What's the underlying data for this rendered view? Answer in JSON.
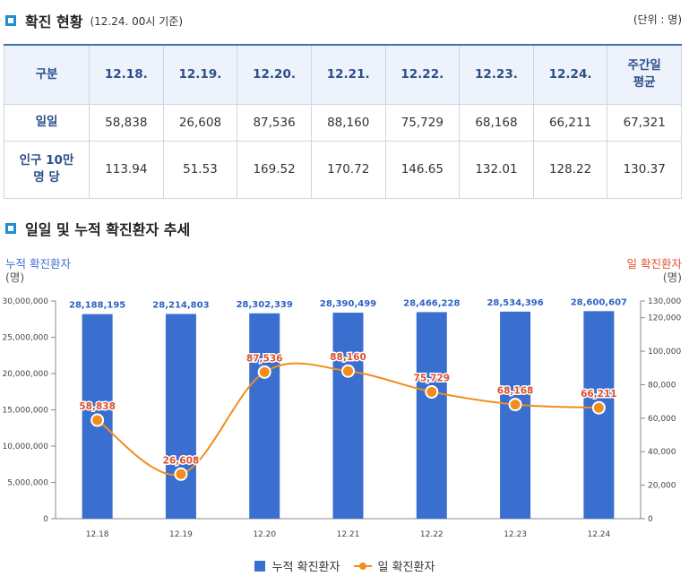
{
  "section1": {
    "title": "확진 현황",
    "subtitle": "(12.24. 00시 기준)",
    "unit": "(단위 : 명)"
  },
  "table": {
    "headers": [
      "구분",
      "12.18.",
      "12.19.",
      "12.20.",
      "12.21.",
      "12.22.",
      "12.23.",
      "12.24.",
      "주간일\n평균"
    ],
    "rows": [
      {
        "label": "일일",
        "values": [
          "58,838",
          "26,608",
          "87,536",
          "88,160",
          "75,729",
          "68,168",
          "66,211",
          "67,321"
        ]
      },
      {
        "label": "인구 10만\n명 당",
        "values": [
          "113.94",
          "51.53",
          "169.52",
          "170.72",
          "146.65",
          "132.01",
          "128.22",
          "130.37"
        ]
      }
    ]
  },
  "section2": {
    "title": "일일 및 누적 확진환자 추세"
  },
  "chart_data": {
    "type": "bar",
    "categories": [
      "12.18",
      "12.19",
      "12.20",
      "12.21",
      "12.22",
      "12.23",
      "12.24"
    ],
    "series": [
      {
        "name": "누적 확진환자",
        "type": "bar",
        "axis": "left",
        "color": "#3a6fcf",
        "values": [
          28188195,
          28214803,
          28302339,
          28390499,
          28466228,
          28534396,
          28600607
        ],
        "labels": [
          "28,188,195",
          "28,214,803",
          "28,302,339",
          "28,390,499",
          "28,466,228",
          "28,534,396",
          "28,600,607"
        ]
      },
      {
        "name": "일 확진환자",
        "type": "line",
        "axis": "right",
        "color": "#f28c1c",
        "values": [
          58838,
          26608,
          87536,
          88160,
          75729,
          68168,
          66211
        ],
        "labels": [
          "58,838",
          "26,608",
          "87,536",
          "88,160",
          "75,729",
          "68,168",
          "66,211"
        ]
      }
    ],
    "left_axis": {
      "title": "누적 확진환자",
      "unit": "(명)",
      "ylim": [
        0,
        30000000
      ],
      "ticks": [
        "0",
        "5,000,000",
        "10,000,000",
        "15,000,000",
        "20,000,000",
        "25,000,000",
        "30,000,000"
      ]
    },
    "right_axis": {
      "title": "일 확진환자",
      "unit": "(명)",
      "ylim": [
        0,
        130000
      ],
      "ticks": [
        "0",
        "20,000",
        "40,000",
        "60,000",
        "80,000",
        "100,000",
        "120,000",
        "130,000"
      ]
    },
    "legend_position": "bottom-center",
    "grid": false
  }
}
